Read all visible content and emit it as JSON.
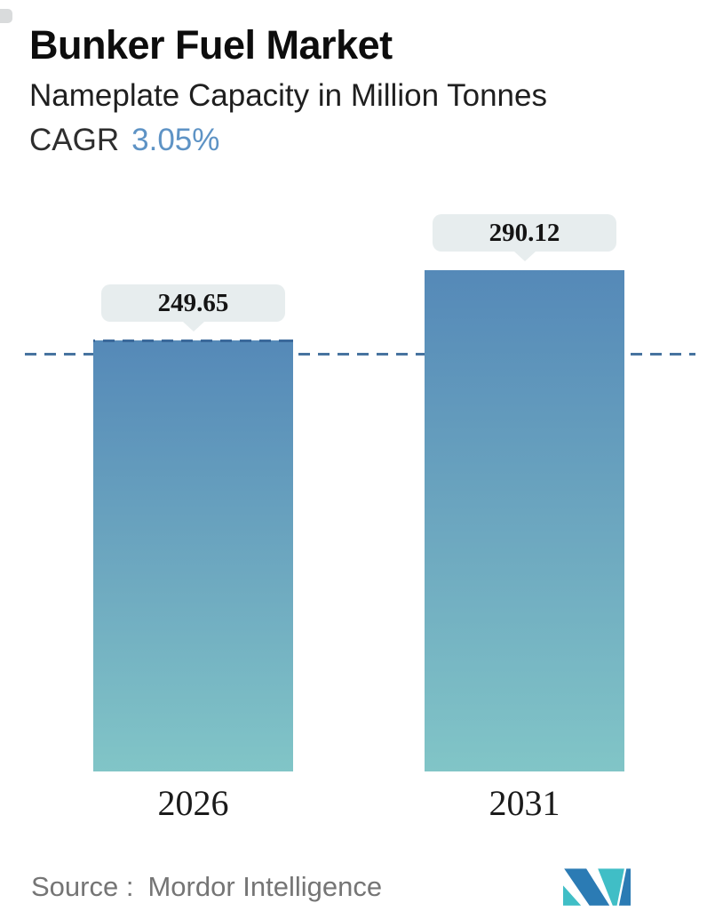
{
  "header": {
    "title": "Bunker Fuel Market",
    "subtitle": "Nameplate Capacity in Million Tonnes",
    "cagr_label": "CAGR",
    "cagr_value": "3.05%"
  },
  "chart_data": {
    "type": "bar",
    "title": "Bunker Fuel Market",
    "subtitle": "Nameplate Capacity in Million Tonnes",
    "cagr": "3.05%",
    "categories": [
      "2026",
      "2031"
    ],
    "values": [
      249.65,
      290.12
    ],
    "value_labels": [
      "249.65",
      "290.12"
    ],
    "unit": "Million Tonnes",
    "xlabel": "",
    "ylabel": "Nameplate Capacity in Million Tonnes",
    "ylim": [
      0,
      325
    ],
    "grid": false,
    "legend": false,
    "reference_line": {
      "style": "dashed",
      "at_value": 249.65
    },
    "colors": {
      "bar_gradient_top": "#5589b8",
      "bar_gradient_bottom": "#81c5c7",
      "reference_line": "#47739f",
      "callout_bg": "#e7edee",
      "cagr_accent": "#5e93c5",
      "source_text": "#757575",
      "logo_blue": "#2b7bb4",
      "logo_teal": "#40bec6"
    }
  },
  "footer": {
    "source_label": "Source :",
    "source_value": "Mordor Intelligence",
    "logo_name": "mordor-intelligence-logo"
  }
}
